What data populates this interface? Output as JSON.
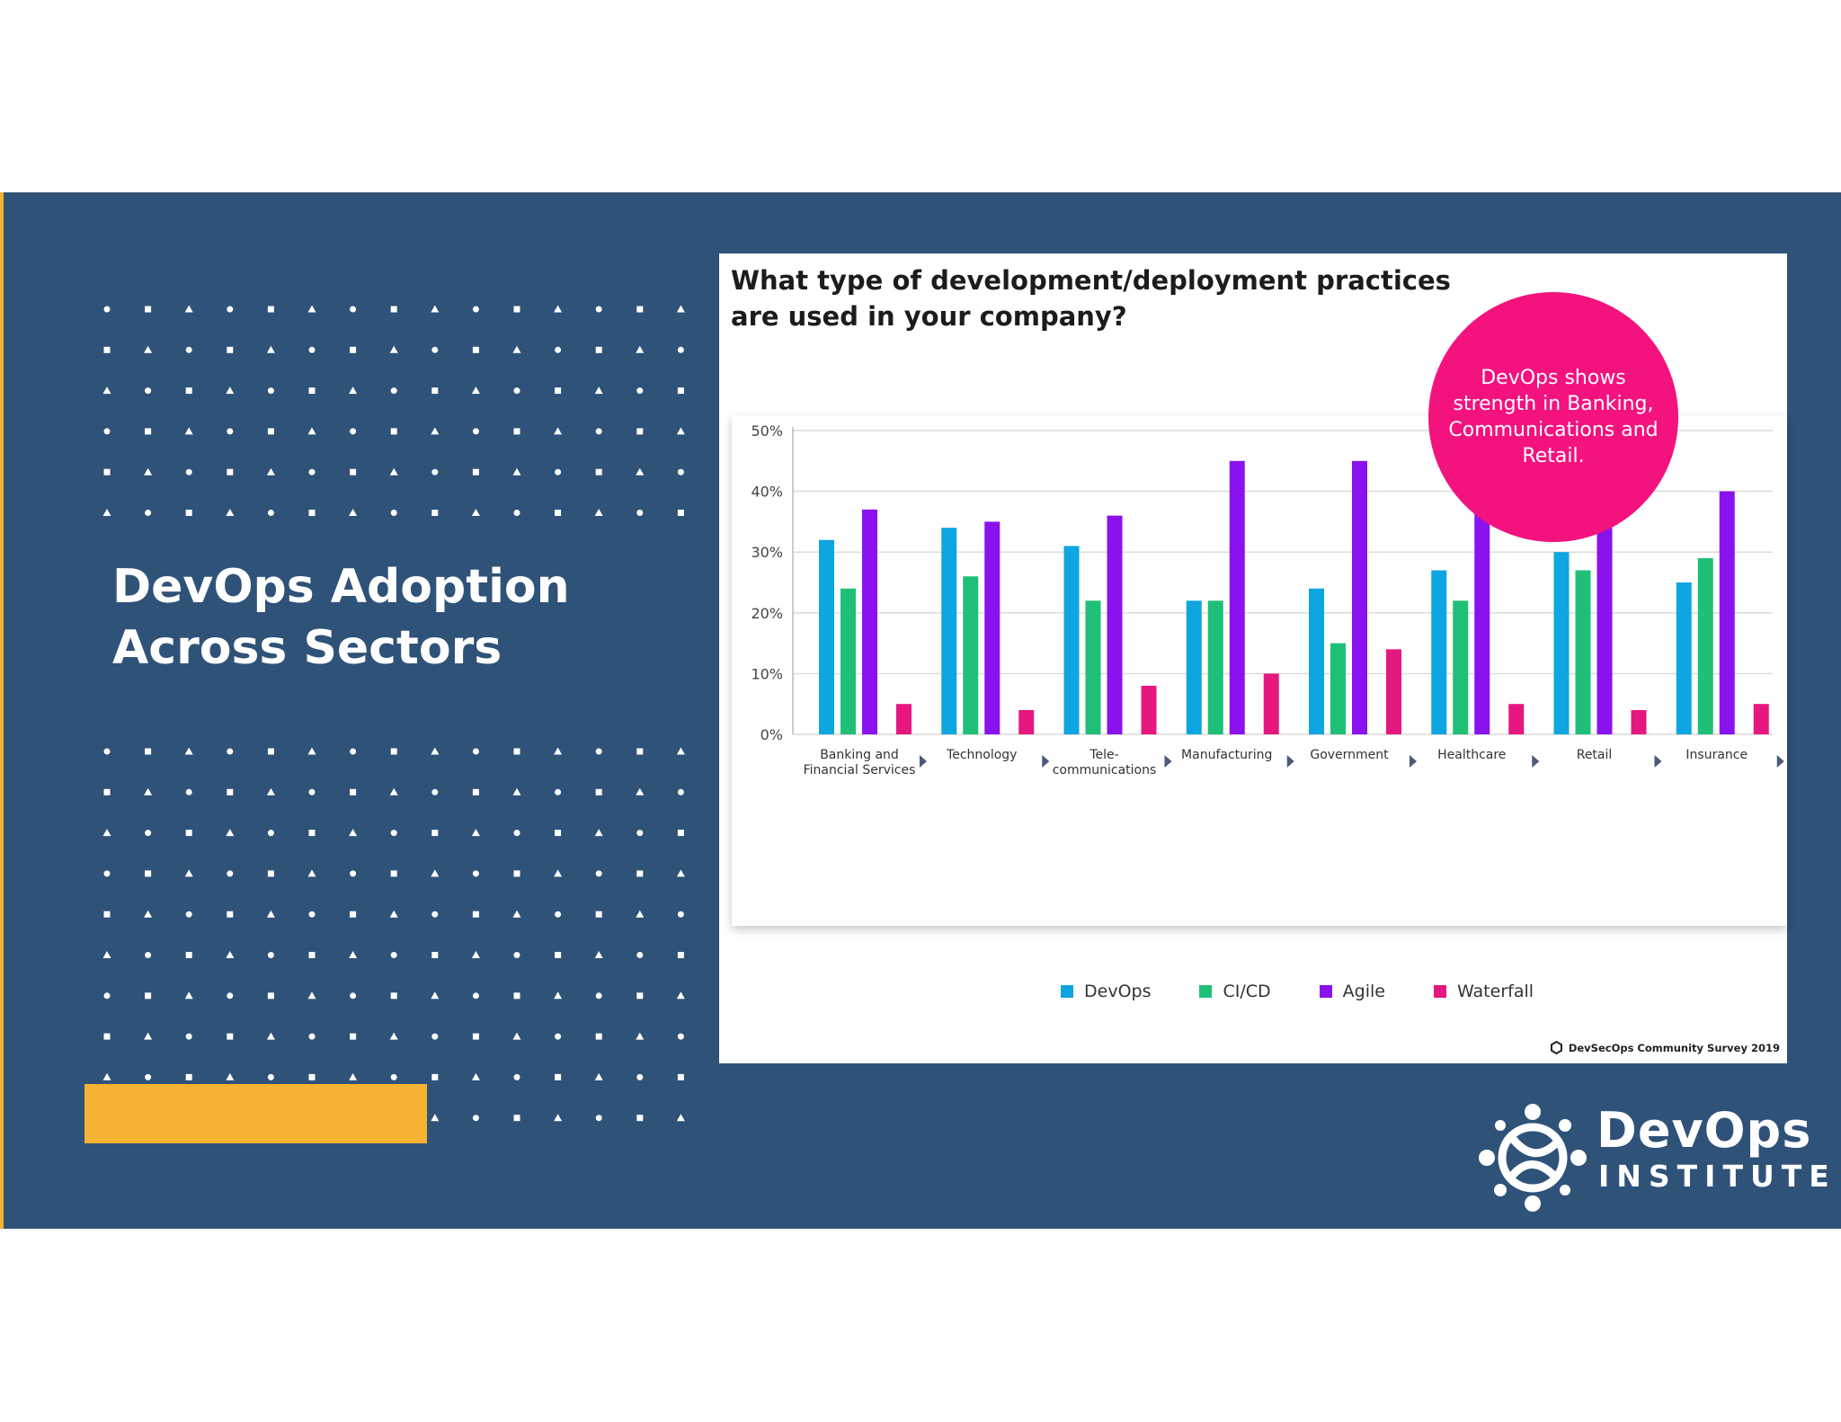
{
  "slide": {
    "title_line1": "DevOps Adoption",
    "title_line2": "Across Sectors",
    "colors": {
      "band": "#2f5278",
      "accent": "#f6b233",
      "callout": "#f4127f"
    }
  },
  "chart_card": {
    "heading_line1": "What type of development/deployment practices",
    "heading_line2": "are used in your company?",
    "callout": "DevOps shows strength in Banking, Communications and Retail.",
    "source": "DevSecOps Community Survey 2019"
  },
  "logo": {
    "line1": "DevOps",
    "line2": "INSTITUTE"
  },
  "chart_data": {
    "type": "bar",
    "title": "What type of development/deployment practices are used in your company?",
    "categories": [
      [
        "Banking and",
        "Financial Services"
      ],
      [
        "Technology"
      ],
      [
        "Tele-",
        "communications"
      ],
      [
        "Manufacturing"
      ],
      [
        "Government"
      ],
      [
        "Healthcare"
      ],
      [
        "Retail"
      ],
      [
        "Insurance"
      ]
    ],
    "series": [
      {
        "name": "DevOps",
        "color": "#0ea5e0",
        "values": [
          32,
          34,
          31,
          22,
          24,
          27,
          30,
          25
        ]
      },
      {
        "name": "CI/CD",
        "color": "#1fbf77",
        "values": [
          24,
          26,
          22,
          22,
          15,
          22,
          27,
          29
        ]
      },
      {
        "name": "Agile",
        "color": "#8a12ef",
        "values": [
          37,
          35,
          36,
          45,
          45,
          45,
          36,
          40
        ]
      },
      {
        "name": "Waterfall",
        "color": "#e6177f",
        "values": [
          5,
          4,
          8,
          10,
          14,
          5,
          4,
          5
        ]
      }
    ],
    "y_ticks": [
      "0%",
      "10%",
      "20%",
      "30%",
      "40%",
      "50%"
    ],
    "ylim": [
      0,
      50
    ],
    "grid": true,
    "legend": "bottom"
  }
}
